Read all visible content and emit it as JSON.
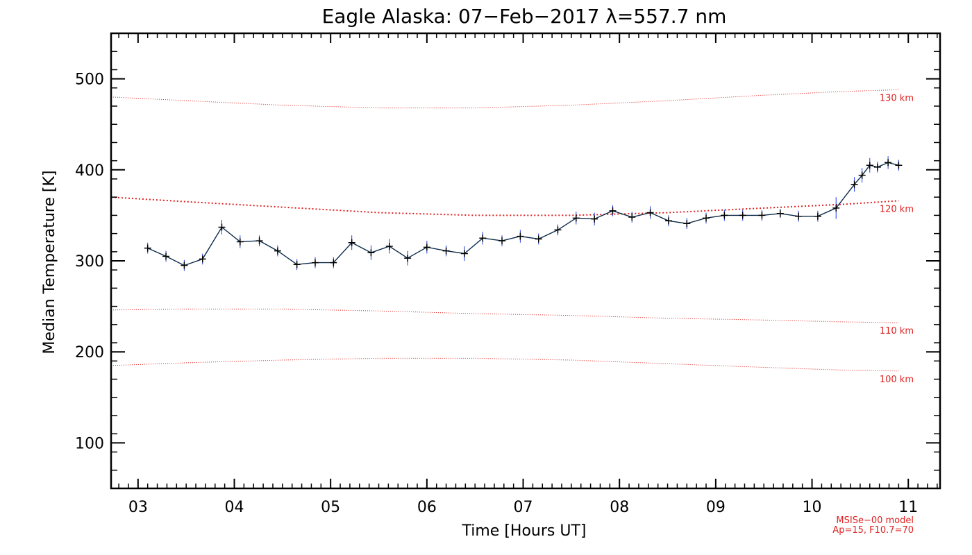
{
  "chart_data": {
    "type": "line",
    "title": "Eagle Alaska: 07−Feb−2017 λ=557.7 nm",
    "xlabel": "Time [Hours UT]",
    "ylabel": "Median Temperature [K]",
    "xlim": [
      2.72,
      11.33
    ],
    "ylim": [
      50,
      550
    ],
    "x_ticks": [
      3,
      4,
      5,
      6,
      7,
      8,
      9,
      10,
      11
    ],
    "x_tick_labels": [
      "03",
      "04",
      "05",
      "06",
      "07",
      "08",
      "09",
      "10",
      "11"
    ],
    "y_ticks": [
      100,
      200,
      300,
      400,
      500
    ],
    "y_tick_labels": [
      "100",
      "200",
      "300",
      "400",
      "500"
    ],
    "grid": false,
    "series": [
      {
        "color": "#0b2a4a",
        "marker": "plus",
        "error_color": "#1f3fe0",
        "x": [
          3.1,
          3.29,
          3.48,
          3.67,
          3.87,
          4.06,
          4.26,
          4.45,
          4.65,
          4.84,
          5.03,
          5.22,
          5.42,
          5.61,
          5.8,
          6.0,
          6.2,
          6.39,
          6.58,
          6.78,
          6.97,
          7.16,
          7.36,
          7.55,
          7.74,
          7.93,
          8.13,
          8.32,
          8.51,
          8.7,
          8.9,
          9.09,
          9.28,
          9.48,
          9.67,
          9.86,
          10.06,
          10.25,
          10.44,
          10.52,
          10.6,
          10.68,
          10.79,
          10.9
        ],
        "y": [
          314,
          305,
          295,
          302,
          337,
          321,
          322,
          311,
          296,
          298,
          298,
          320,
          309,
          316,
          303,
          315,
          311,
          308,
          325,
          322,
          327,
          324,
          334,
          347,
          346,
          355,
          348,
          353,
          344,
          341,
          347,
          350,
          350,
          350,
          352,
          349,
          349,
          358,
          384,
          394,
          405,
          403,
          408,
          405
        ],
        "err": [
          6,
          6,
          6,
          6,
          8,
          7,
          6,
          6,
          6,
          6,
          6,
          8,
          8,
          8,
          8,
          7,
          6,
          8,
          7,
          6,
          7,
          6,
          6,
          7,
          7,
          6,
          6,
          7,
          6,
          6,
          6,
          6,
          6,
          6,
          5,
          6,
          6,
          12,
          8,
          8,
          8,
          6,
          7,
          6
        ]
      }
    ],
    "model_curves": [
      {
        "label": "130 km",
        "color": "#e02020",
        "x": [
          2.72,
          3.5,
          4.5,
          5.5,
          6.5,
          7.5,
          8.5,
          9.5,
          10.3,
          10.9
        ],
        "y": [
          480,
          476,
          471,
          468,
          468,
          471,
          476,
          482,
          486,
          488
        ]
      },
      {
        "label": "120 km",
        "color": "#e02020",
        "x": [
          2.72,
          3.5,
          4.5,
          5.5,
          6.5,
          7.5,
          8.5,
          9.5,
          10.3,
          10.9
        ],
        "y": [
          370,
          365,
          359,
          353,
          350,
          350,
          353,
          358,
          362,
          366
        ]
      },
      {
        "label": "110 km",
        "color": "#e02020",
        "x": [
          2.72,
          3.5,
          4.5,
          5.5,
          6.5,
          7.5,
          8.5,
          9.5,
          10.3,
          10.9
        ],
        "y": [
          246,
          247,
          247,
          245,
          242,
          240,
          237,
          235,
          233,
          232
        ]
      },
      {
        "label": "100 km",
        "color": "#e02020",
        "x": [
          2.72,
          3.5,
          4.5,
          5.5,
          6.5,
          7.5,
          8.5,
          9.5,
          10.3,
          10.9
        ],
        "y": [
          185,
          188,
          191,
          193,
          193,
          191,
          187,
          183,
          180,
          179
        ]
      }
    ],
    "notes": [
      "MSISe−00 model",
      "Ap=15, F10.7=70"
    ]
  }
}
